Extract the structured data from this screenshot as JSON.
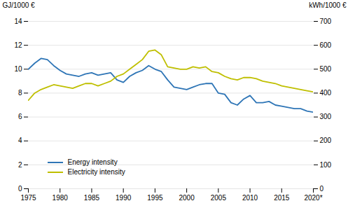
{
  "chart_data": {
    "type": "line",
    "x": [
      1975,
      1976,
      1977,
      1978,
      1979,
      1980,
      1981,
      1982,
      1983,
      1984,
      1985,
      1986,
      1987,
      1988,
      1989,
      1990,
      1991,
      1992,
      1993,
      1994,
      1995,
      1996,
      1997,
      1998,
      1999,
      2000,
      2001,
      2002,
      2003,
      2004,
      2005,
      2006,
      2007,
      2008,
      2009,
      2010,
      2011,
      2012,
      2013,
      2014,
      2015,
      2016,
      2017,
      2018,
      2019,
      2020
    ],
    "series": [
      {
        "name": "Energy intensity",
        "color": "#2E75B6",
        "values": [
          10.0,
          10.5,
          10.9,
          10.8,
          10.3,
          9.9,
          9.6,
          9.5,
          9.4,
          9.6,
          9.7,
          9.5,
          9.6,
          9.7,
          9.1,
          8.9,
          9.4,
          9.7,
          9.9,
          10.3,
          10.0,
          9.8,
          9.1,
          8.5,
          8.4,
          8.3,
          8.5,
          8.7,
          8.8,
          8.8,
          8.0,
          7.9,
          7.2,
          7.0,
          7.5,
          7.8,
          7.2,
          7.2,
          7.3,
          7.0,
          6.9,
          6.8,
          6.7,
          6.7,
          6.5,
          6.4
        ]
      },
      {
        "name": "Electricity intensity",
        "color": "#BFBF00",
        "axis": "y2",
        "values": [
          370,
          400,
          415,
          425,
          435,
          430,
          425,
          420,
          430,
          440,
          440,
          430,
          440,
          450,
          470,
          480,
          500,
          520,
          540,
          575,
          580,
          560,
          510,
          505,
          500,
          500,
          510,
          505,
          510,
          490,
          485,
          470,
          460,
          455,
          465,
          465,
          460,
          450,
          445,
          440,
          430,
          425,
          420,
          415,
          410,
          405
        ]
      }
    ],
    "ylabel": "GJ/1000 €",
    "y2label": "kWh/1000 €",
    "xlim": [
      1975,
      2020
    ],
    "xticks": [
      1975,
      1980,
      1985,
      1990,
      1995,
      2000,
      2005,
      2010,
      2015,
      {
        "value": 2020,
        "label": "2020*"
      }
    ],
    "ylim": [
      0,
      14
    ],
    "yticks": [
      0,
      2,
      4,
      6,
      8,
      10,
      12,
      14
    ],
    "y2lim": [
      0,
      700
    ],
    "y2ticks": [
      0,
      100,
      200,
      300,
      400,
      500,
      600,
      700
    ],
    "grid": true,
    "legend": "lower left"
  }
}
